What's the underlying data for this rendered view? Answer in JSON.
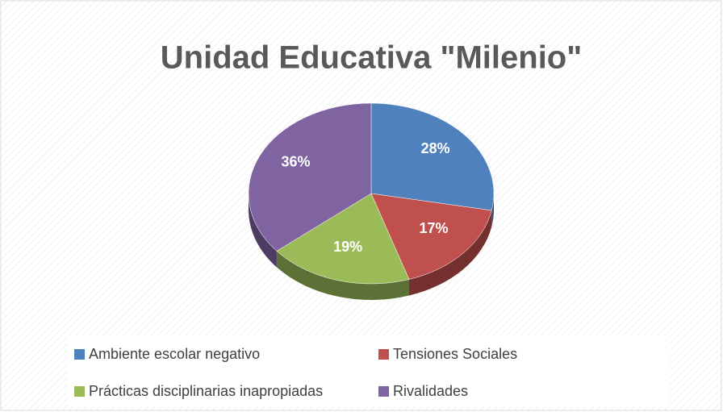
{
  "chart_data": {
    "type": "pie",
    "title": "Unidad Educativa \"Milenio\"",
    "categories": [
      "Ambiente escolar negativo",
      "Tensiones Sociales",
      "Prácticas disciplinarias inapropiadas",
      "Rivalidades"
    ],
    "values": [
      28,
      17,
      19,
      36
    ],
    "value_labels": [
      "28%",
      "17%",
      "19%",
      "36%"
    ],
    "colors": [
      "#4f81bd",
      "#c0504d",
      "#9bbb59",
      "#8064a2"
    ],
    "legend": "bottom"
  }
}
